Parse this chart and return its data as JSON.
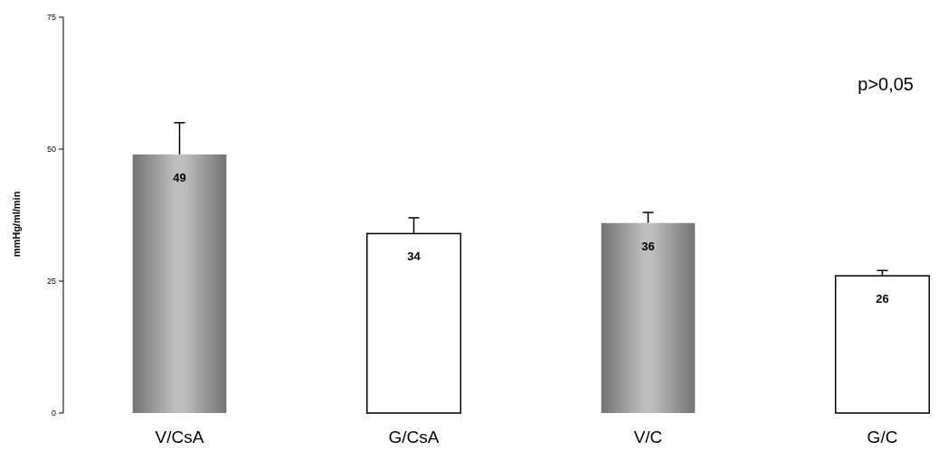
{
  "chart_data": {
    "type": "bar",
    "ylabel": "mmHg/ml/min",
    "categories": [
      "V/CsA",
      "G/CsA",
      "V/C",
      "G/C"
    ],
    "values": [
      49,
      34,
      36,
      26
    ],
    "colors": [
      "#bdbdbd",
      "#ffffff",
      "#bdbdbd",
      "#ffffff"
    ],
    "errors": [
      [
        49,
        55
      ],
      [
        34,
        37
      ],
      [
        36,
        38
      ],
      [
        26,
        27
      ]
    ],
    "ylim": [
      0,
      75
    ],
    "yticks": [
      0,
      25,
      50,
      75
    ],
    "data_labels": true,
    "annotations": [
      "p>0,05"
    ]
  }
}
